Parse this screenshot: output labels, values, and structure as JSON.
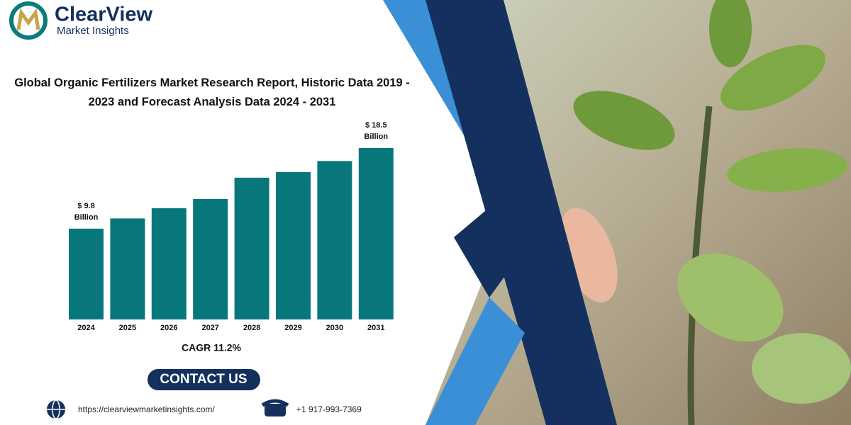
{
  "header": {
    "brand": "ClearView",
    "tagline": "Market Insights"
  },
  "chart_data": {
    "type": "bar",
    "title": "Global Organic Fertilizers Market Research Report, Historic Data 2019 - 2023 and Forecast Analysis Data 2024 - 2031",
    "categories": [
      "2024",
      "2025",
      "2026",
      "2027",
      "2028",
      "2029",
      "2030",
      "2031"
    ],
    "values": [
      9.8,
      10.9,
      12.0,
      13.0,
      15.3,
      15.9,
      17.1,
      18.5
    ],
    "value_labels": [
      "$ 9.8 Billion",
      null,
      null,
      null,
      null,
      null,
      null,
      "$ 18.5 Billion"
    ],
    "color": "#08777b",
    "annotation": "CAGR 11.2%"
  },
  "footer": {
    "button": "CONTACT US",
    "website": "https://clearviewmarketinsights.com/",
    "phone": "+1 917-993-7369"
  }
}
